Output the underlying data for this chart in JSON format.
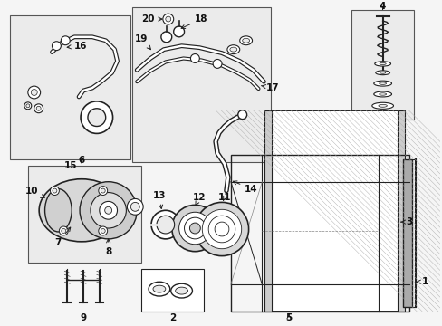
{
  "background_color": "#f5f5f5",
  "fig_width": 4.89,
  "fig_height": 3.6,
  "dpi": 100,
  "box_fc": "#ebebeb",
  "box_ec": "#555555",
  "line_color": "#222222",
  "label_fs": 7.5,
  "label_color": "#111111"
}
